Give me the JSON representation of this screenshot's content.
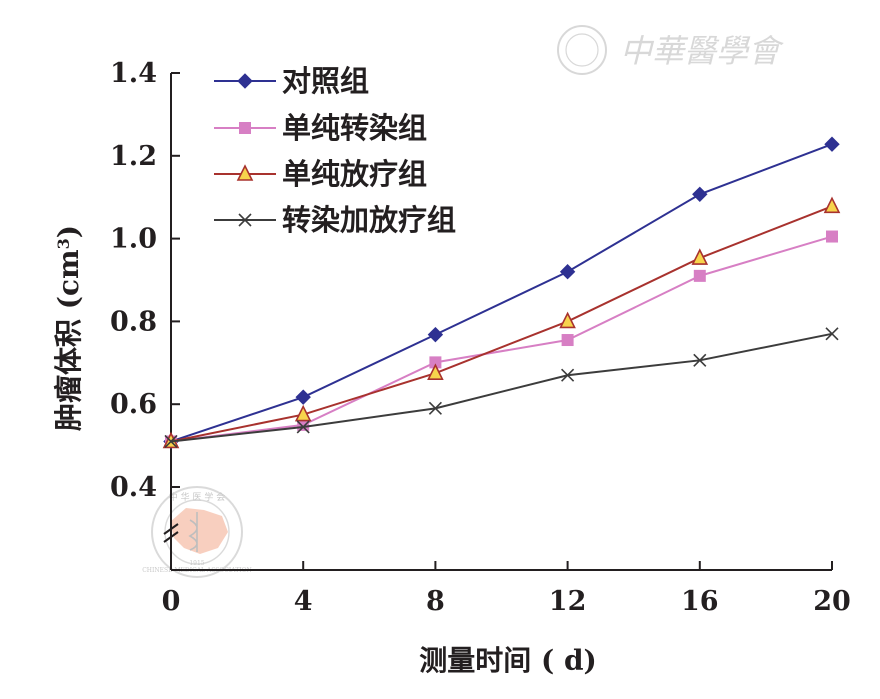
{
  "chart_data": {
    "type": "line",
    "x": [
      0,
      4,
      8,
      12,
      16,
      20
    ],
    "xlabel": "测量时间 ( d)",
    "ylabel": "肿瘤体积 (cm",
    "ylabel_sup": "3",
    "ylabel_close": ")",
    "ylim": [
      0.4,
      1.4
    ],
    "xlim": [
      0,
      20
    ],
    "yticks": [
      "1.4",
      "1.2",
      "1.0",
      "0.8",
      "0.6",
      "0.4"
    ],
    "xticks": [
      "0",
      "4",
      "8",
      "12",
      "16",
      "20"
    ],
    "axis_break": true,
    "grid": false,
    "legend_position": "top-left",
    "series": [
      {
        "name": "对照组",
        "marker": "diamond",
        "color": "#2e3192",
        "marker_fill": "#2e3192",
        "values": [
          0.51,
          0.617,
          0.768,
          0.92,
          1.107,
          1.228
        ]
      },
      {
        "name": "单纯转染组",
        "marker": "square",
        "color": "#d77fc4",
        "marker_fill": "#d77fc4",
        "values": [
          0.51,
          0.55,
          0.701,
          0.755,
          0.91,
          1.005
        ]
      },
      {
        "name": "单纯放疗组",
        "marker": "triangle",
        "color": "#a8322e",
        "marker_fill": "#f7d44c",
        "values": [
          0.51,
          0.575,
          0.675,
          0.8,
          0.953,
          1.078
        ]
      },
      {
        "name": "转染加放疗组",
        "marker": "x",
        "color": "#3c3c3c",
        "marker_fill": "#3c3c3c",
        "values": [
          0.51,
          0.545,
          0.59,
          0.67,
          0.706,
          0.77
        ]
      }
    ]
  },
  "watermark": {
    "text": "中華醫學會",
    "seal_text_top": "中 华 医 学 会",
    "seal_text_bottom": "CHINESE MEDICAL ASSOCIATION",
    "seal_year": "1915"
  },
  "colors": {
    "axis": "#231f20",
    "watermark": "#b9b9b9",
    "seal_map": "#f4a98c"
  }
}
